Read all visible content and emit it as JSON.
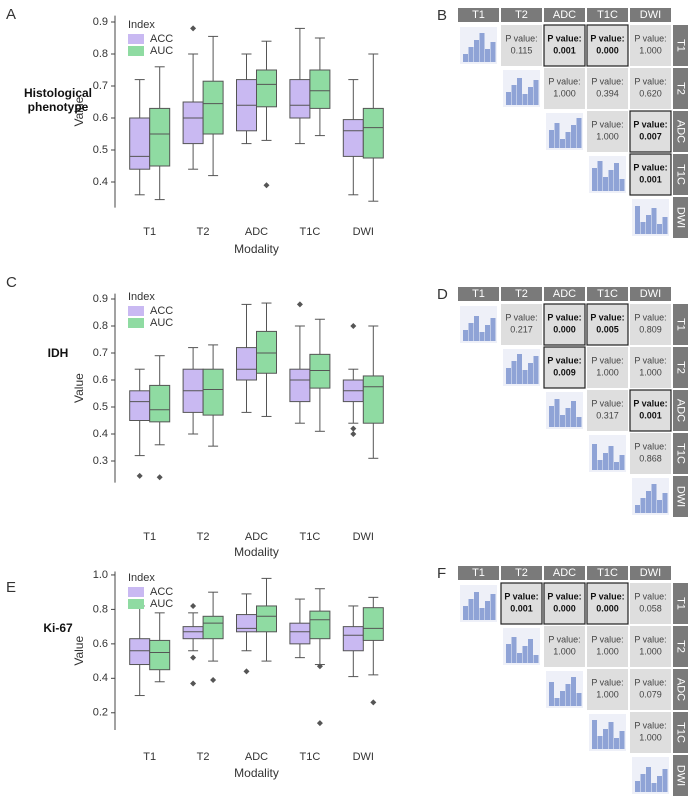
{
  "chart_data": [
    {
      "type": "box",
      "panel": "A",
      "row_label": "Histological phenotype",
      "x_label": "Modality",
      "y_label": "Value",
      "legend_title": "Index",
      "categories": [
        "T1",
        "T2",
        "ADC",
        "T1C",
        "DWI"
      ],
      "ylim": [
        0.32,
        0.92
      ],
      "yticks": [
        0.4,
        0.5,
        0.6,
        0.7,
        0.8,
        0.9
      ],
      "series": [
        {
          "name": "ACC",
          "color": "#c9b9f2",
          "values": [
            {
              "min": 0.36,
              "q1": 0.44,
              "median": 0.48,
              "q3": 0.6,
              "max": 0.72,
              "outliers": []
            },
            {
              "min": 0.44,
              "q1": 0.52,
              "median": 0.6,
              "q3": 0.65,
              "max": 0.8,
              "outliers": [
                0.88
              ]
            },
            {
              "min": 0.52,
              "q1": 0.56,
              "median": 0.64,
              "q3": 0.72,
              "max": 0.8,
              "outliers": []
            },
            {
              "min": 0.52,
              "q1": 0.6,
              "median": 0.64,
              "q3": 0.72,
              "max": 0.88,
              "outliers": []
            },
            {
              "min": 0.36,
              "q1": 0.48,
              "median": 0.56,
              "q3": 0.595,
              "max": 0.72,
              "outliers": []
            }
          ]
        },
        {
          "name": "AUC",
          "color": "#8fdba2",
          "values": [
            {
              "min": 0.345,
              "q1": 0.45,
              "median": 0.55,
              "q3": 0.63,
              "max": 0.76,
              "outliers": []
            },
            {
              "min": 0.42,
              "q1": 0.55,
              "median": 0.645,
              "q3": 0.715,
              "max": 0.855,
              "outliers": []
            },
            {
              "min": 0.53,
              "q1": 0.635,
              "median": 0.705,
              "q3": 0.75,
              "max": 0.84,
              "outliers": [
                0.39
              ]
            },
            {
              "min": 0.545,
              "q1": 0.63,
              "median": 0.685,
              "q3": 0.75,
              "max": 0.85,
              "outliers": []
            },
            {
              "min": 0.34,
              "q1": 0.475,
              "median": 0.57,
              "q3": 0.63,
              "max": 0.8,
              "outliers": []
            }
          ]
        }
      ]
    },
    {
      "type": "box",
      "panel": "C",
      "row_label": "IDH",
      "x_label": "Modality",
      "y_label": "Value",
      "legend_title": "Index",
      "categories": [
        "T1",
        "T2",
        "ADC",
        "T1C",
        "DWI"
      ],
      "ylim": [
        0.22,
        0.92
      ],
      "yticks": [
        0.3,
        0.4,
        0.5,
        0.6,
        0.7,
        0.8,
        0.9
      ],
      "series": [
        {
          "name": "ACC",
          "color": "#c9b9f2",
          "values": [
            {
              "min": 0.32,
              "q1": 0.45,
              "median": 0.52,
              "q3": 0.56,
              "max": 0.64,
              "outliers": [
                0.245
              ]
            },
            {
              "min": 0.4,
              "q1": 0.48,
              "median": 0.56,
              "q3": 0.64,
              "max": 0.72,
              "outliers": []
            },
            {
              "min": 0.48,
              "q1": 0.6,
              "median": 0.64,
              "q3": 0.72,
              "max": 0.88,
              "outliers": []
            },
            {
              "min": 0.44,
              "q1": 0.52,
              "median": 0.6,
              "q3": 0.64,
              "max": 0.8,
              "outliers": [
                0.88
              ]
            },
            {
              "min": 0.44,
              "q1": 0.52,
              "median": 0.56,
              "q3": 0.6,
              "max": 0.64,
              "outliers": [
                0.8,
                0.42,
                0.4
              ]
            }
          ]
        },
        {
          "name": "AUC",
          "color": "#8fdba2",
          "values": [
            {
              "min": 0.36,
              "q1": 0.445,
              "median": 0.49,
              "q3": 0.58,
              "max": 0.69,
              "outliers": [
                0.24
              ]
            },
            {
              "min": 0.355,
              "q1": 0.47,
              "median": 0.565,
              "q3": 0.64,
              "max": 0.73,
              "outliers": []
            },
            {
              "min": 0.465,
              "q1": 0.625,
              "median": 0.7,
              "q3": 0.78,
              "max": 0.885,
              "outliers": []
            },
            {
              "min": 0.41,
              "q1": 0.57,
              "median": 0.635,
              "q3": 0.695,
              "max": 0.825,
              "outliers": []
            },
            {
              "min": 0.31,
              "q1": 0.44,
              "median": 0.575,
              "q3": 0.615,
              "max": 0.8,
              "outliers": []
            }
          ]
        }
      ]
    },
    {
      "type": "box",
      "panel": "E",
      "row_label": "Ki-67",
      "x_label": "Modality",
      "y_label": "Value",
      "legend_title": "Index",
      "categories": [
        "T1",
        "T2",
        "ADC",
        "T1C",
        "DWI"
      ],
      "ylim": [
        0.1,
        1.02
      ],
      "yticks": [
        0.2,
        0.4,
        0.6,
        0.8,
        {
          "value": 1,
          "label": "1.0"
        }
      ],
      "series": [
        {
          "name": "ACC",
          "color": "#c9b9f2",
          "values": [
            {
              "min": 0.3,
              "q1": 0.48,
              "median": 0.56,
              "q3": 0.63,
              "max": 0.82,
              "outliers": []
            },
            {
              "min": 0.56,
              "q1": 0.63,
              "median": 0.67,
              "q3": 0.7,
              "max": 0.78,
              "outliers": [
                0.82,
                0.52,
                0.37
              ]
            },
            {
              "min": 0.56,
              "q1": 0.67,
              "median": 0.69,
              "q3": 0.77,
              "max": 0.89,
              "outliers": [
                0.44
              ]
            },
            {
              "min": 0.52,
              "q1": 0.6,
              "median": 0.67,
              "q3": 0.72,
              "max": 0.86,
              "outliers": []
            },
            {
              "min": 0.41,
              "q1": 0.56,
              "median": 0.65,
              "q3": 0.7,
              "max": 0.82,
              "outliers": []
            }
          ]
        },
        {
          "name": "AUC",
          "color": "#8fdba2",
          "values": [
            {
              "min": 0.38,
              "q1": 0.45,
              "median": 0.55,
              "q3": 0.62,
              "max": 0.78,
              "outliers": []
            },
            {
              "min": 0.5,
              "q1": 0.63,
              "median": 0.72,
              "q3": 0.76,
              "max": 0.9,
              "outliers": [
                0.39
              ]
            },
            {
              "min": 0.5,
              "q1": 0.67,
              "median": 0.76,
              "q3": 0.82,
              "max": 0.98,
              "outliers": []
            },
            {
              "min": 0.48,
              "q1": 0.63,
              "median": 0.74,
              "q3": 0.79,
              "max": 0.92,
              "outliers": [
                0.47,
                0.14
              ]
            },
            {
              "min": 0.42,
              "q1": 0.62,
              "median": 0.69,
              "q3": 0.81,
              "max": 0.87,
              "outliers": [
                0.26
              ]
            }
          ]
        }
      ]
    }
  ],
  "matrices": [
    {
      "panel": "B",
      "labels": [
        "T1",
        "T2",
        "ADC",
        "T1C",
        "DWI"
      ],
      "rows": [
        [
          null,
          {
            "label": "P value:",
            "p": "0.115"
          },
          {
            "label": "P value:",
            "p": "0.001",
            "highlight": true
          },
          {
            "label": "P value:",
            "p": "0.000",
            "highlight": true
          },
          {
            "label": "P value:",
            "p": "1.000"
          }
        ],
        [
          null,
          null,
          {
            "label": "P value:",
            "p": "1.000"
          },
          {
            "label": "P value:",
            "p": "0.394"
          },
          {
            "label": "P value:",
            "p": "0.620"
          }
        ],
        [
          null,
          null,
          null,
          {
            "label": "P value:",
            "p": "1.000"
          },
          {
            "label": "P value:",
            "p": "0.007",
            "highlight": true
          }
        ],
        [
          null,
          null,
          null,
          null,
          {
            "label": "P value:",
            "p": "0.001",
            "highlight": true
          }
        ],
        [
          null,
          null,
          null,
          null,
          null
        ]
      ]
    },
    {
      "panel": "D",
      "labels": [
        "T1",
        "T2",
        "ADC",
        "T1C",
        "DWI"
      ],
      "rows": [
        [
          null,
          {
            "label": "P value:",
            "p": "0.217"
          },
          {
            "label": "P value:",
            "p": "0.000",
            "highlight": true
          },
          {
            "label": "P value:",
            "p": "0.005",
            "highlight": true
          },
          {
            "label": "P value:",
            "p": "0.809"
          }
        ],
        [
          null,
          null,
          {
            "label": "P value:",
            "p": "0.009",
            "highlight": true
          },
          {
            "label": "P value:",
            "p": "1.000"
          },
          {
            "label": "P value:",
            "p": "1.000"
          }
        ],
        [
          null,
          null,
          null,
          {
            "label": "P value:",
            "p": "0.317"
          },
          {
            "label": "P value:",
            "p": "0.001",
            "highlight": true
          }
        ],
        [
          null,
          null,
          null,
          null,
          {
            "label": "P value:",
            "p": "0.868"
          }
        ],
        [
          null,
          null,
          null,
          null,
          null
        ]
      ]
    },
    {
      "panel": "F",
      "labels": [
        "T1",
        "T2",
        "ADC",
        "T1C",
        "DWI"
      ],
      "rows": [
        [
          null,
          {
            "label": "P value:",
            "p": "0.001",
            "highlight": true
          },
          {
            "label": "P value:",
            "p": "0.000",
            "highlight": true
          },
          {
            "label": "P value:",
            "p": "0.000",
            "highlight": true
          },
          {
            "label": "P value:",
            "p": "0.058"
          }
        ],
        [
          null,
          null,
          {
            "label": "P value:",
            "p": "1.000"
          },
          {
            "label": "P value:",
            "p": "1.000"
          },
          {
            "label": "P value:",
            "p": "1.000"
          }
        ],
        [
          null,
          null,
          null,
          {
            "label": "P value:",
            "p": "1.000"
          },
          {
            "label": "P value:",
            "p": "0.079"
          }
        ],
        [
          null,
          null,
          null,
          null,
          {
            "label": "P value:",
            "p": "1.000"
          }
        ],
        [
          null,
          null,
          null,
          null,
          null
        ]
      ]
    }
  ]
}
